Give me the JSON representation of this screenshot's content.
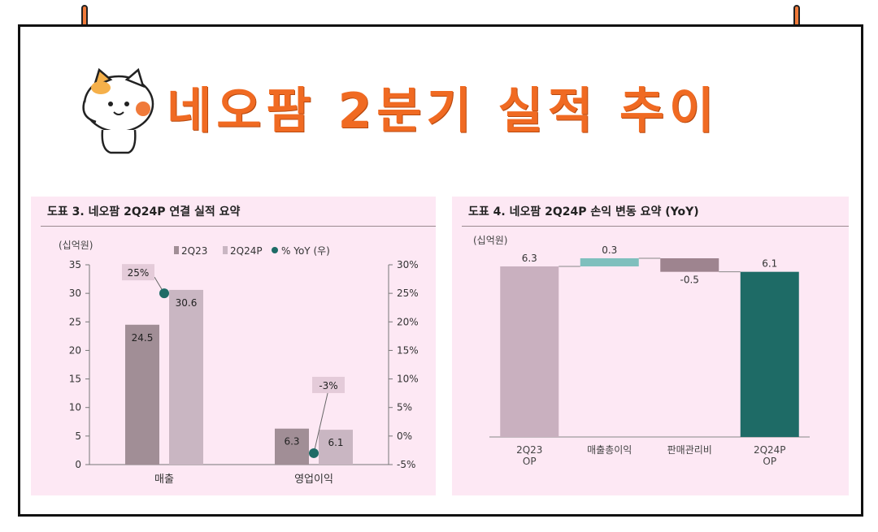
{
  "page_title": "네오팜 2분기 실적 추이",
  "chart_data": [
    {
      "type": "bar",
      "title": "도표 3. 네오팜 2Q24P 연결 실적 요약",
      "unit_label": "(십억원)",
      "categories": [
        "매출",
        "영업이익"
      ],
      "series": [
        {
          "name": "2Q23",
          "values": [
            24.5,
            6.3
          ],
          "labels": [
            "24.5",
            "6.3"
          ],
          "color": "#a18e96"
        },
        {
          "name": "2Q24P",
          "values": [
            30.6,
            6.1
          ],
          "labels": [
            "30.6",
            "6.1"
          ],
          "color": "#c9b6c2"
        }
      ],
      "yoy": {
        "name": "% YoY (우)",
        "values": [
          25,
          -3
        ],
        "labels": [
          "25%",
          "-3%"
        ],
        "color": "#1e6b66"
      },
      "ylim": [
        0,
        35
      ],
      "yticks": [
        "0",
        "5",
        "10",
        "15",
        "20",
        "25",
        "30",
        "35"
      ],
      "y2lim": [
        -5,
        30
      ],
      "y2ticks": [
        "-5%",
        "0%",
        "5%",
        "10%",
        "15%",
        "20%",
        "25%",
        "30%"
      ],
      "legend_placement": "top"
    },
    {
      "type": "waterfall",
      "title": "도표 4. 네오팜 2Q24P 손익 변동 요약 (YoY)",
      "unit_label": "(십억원)",
      "categories": [
        "2Q23\nOP",
        "매출총이익",
        "판매관리비",
        "2Q24P\nOP"
      ],
      "values": [
        6.3,
        0.3,
        -0.5,
        6.1
      ],
      "labels": [
        "6.3",
        "0.3",
        "-0.5",
        "6.1"
      ],
      "colors": [
        "#c9b0bf",
        "#7fbfbd",
        "#9e848f",
        "#1e6b66"
      ]
    }
  ]
}
